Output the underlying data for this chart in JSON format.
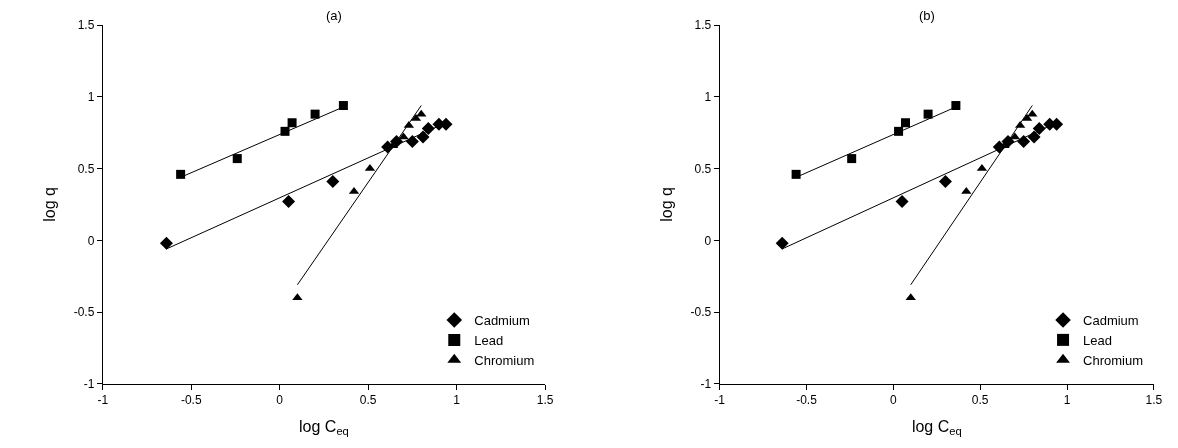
{
  "chart_data": [
    {
      "type": "scatter",
      "title": "(a)",
      "xlabel": "log C$_{eq}$",
      "ylabel": "log q",
      "xlim": [
        -1,
        1.5
      ],
      "xticks": [
        -1,
        -0.5,
        0,
        0.5,
        1,
        1.5
      ],
      "ylim": [
        -1,
        1.5
      ],
      "yticks": [
        -1,
        -0.5,
        0,
        0.5,
        1,
        1.5
      ],
      "legend": "bottom right",
      "series": [
        {
          "name": "Cadmium",
          "color": "#000000",
          "marker": "diamond",
          "x": [
            -0.64,
            0.05,
            0.3,
            0.61,
            0.66,
            0.75,
            0.81,
            0.84,
            0.9,
            0.94
          ],
          "values": [
            -0.02,
            0.27,
            0.41,
            0.65,
            0.69,
            0.69,
            0.72,
            0.78,
            0.81,
            0.81
          ]
        },
        {
          "name": "Lead",
          "color": "#000000",
          "marker": "square",
          "x": [
            -0.56,
            -0.24,
            0.03,
            0.07,
            0.2,
            0.36
          ],
          "values": [
            0.46,
            0.57,
            0.76,
            0.82,
            0.88,
            0.94
          ]
        },
        {
          "name": "Chromium",
          "color": "#000000",
          "marker": "triangle",
          "x": [
            0.1,
            0.42,
            0.51,
            0.64,
            0.7,
            0.73,
            0.77,
            0.8
          ],
          "values": [
            -0.4,
            0.34,
            0.5,
            0.66,
            0.72,
            0.8,
            0.85,
            0.88
          ]
        },
        {
          "type": "line",
          "color": "#000000",
          "marker": "none",
          "x": [
            -0.64,
            0.94
          ],
          "values": [
            -0.06,
            0.82
          ]
        },
        {
          "type": "line",
          "color": "#000000",
          "marker": "none",
          "x": [
            -0.54,
            0.36
          ],
          "values": [
            0.45,
            0.93
          ]
        },
        {
          "type": "line",
          "color": "#000000",
          "marker": "none",
          "x": [
            0.1,
            0.8
          ],
          "values": [
            -0.31,
            0.94
          ]
        }
      ]
    },
    {
      "type": "scatter",
      "title": "(b)",
      "xlabel": "log C$_{eq}$",
      "ylabel": "log q",
      "xlim": [
        -1,
        1.5
      ],
      "xticks": [
        -1,
        -0.5,
        0,
        0.5,
        1,
        1.5
      ],
      "ylim": [
        -1,
        1.5
      ],
      "yticks": [
        -1,
        -0.5,
        0,
        0.5,
        1,
        1.5
      ],
      "legend": "bottom right",
      "series": [
        {
          "name": "Cadmium",
          "color": "#000000",
          "marker": "diamond",
          "x": [
            -0.64,
            0.05,
            0.3,
            0.61,
            0.66,
            0.75,
            0.81,
            0.84,
            0.9,
            0.94
          ],
          "values": [
            -0.02,
            0.27,
            0.41,
            0.65,
            0.69,
            0.69,
            0.72,
            0.78,
            0.81,
            0.81
          ]
        },
        {
          "name": "Lead",
          "color": "#000000",
          "marker": "square",
          "x": [
            -0.56,
            -0.24,
            0.03,
            0.07,
            0.2,
            0.36
          ],
          "values": [
            0.46,
            0.57,
            0.76,
            0.82,
            0.88,
            0.94
          ]
        },
        {
          "name": "Chromium",
          "color": "#000000",
          "marker": "triangle",
          "x": [
            0.1,
            0.42,
            0.51,
            0.64,
            0.7,
            0.73,
            0.77,
            0.8
          ],
          "values": [
            -0.4,
            0.34,
            0.5,
            0.66,
            0.72,
            0.8,
            0.85,
            0.88
          ]
        },
        {
          "type": "line",
          "color": "#000000",
          "marker": "none",
          "x": [
            -0.64,
            0.94
          ],
          "values": [
            -0.06,
            0.82
          ]
        },
        {
          "type": "line",
          "color": "#000000",
          "marker": "none",
          "x": [
            -0.54,
            0.36
          ],
          "values": [
            0.45,
            0.93
          ]
        },
        {
          "type": "line",
          "color": "#000000",
          "marker": "none",
          "x": [
            0.1,
            0.8
          ],
          "values": [
            -0.31,
            0.94
          ]
        }
      ]
    }
  ]
}
